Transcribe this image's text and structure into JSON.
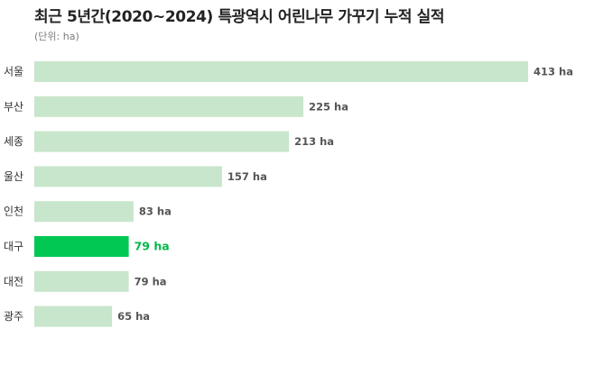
{
  "chart_data": {
    "type": "bar",
    "orientation": "horizontal",
    "title": "최근 5년간(2020~2024) 특광역시 어린나무 가꾸기 누적 실적",
    "subtitle": "(단위: ha)",
    "unit": "ha",
    "categories": [
      "서울",
      "부산",
      "세종",
      "울산",
      "인천",
      "대구",
      "대전",
      "광주"
    ],
    "values": [
      413,
      225,
      213,
      157,
      83,
      79,
      79,
      65
    ],
    "highlight_category": "대구",
    "xlim": [
      0,
      413
    ],
    "grid": false,
    "legend": "none"
  },
  "colors": {
    "bar": "#c8e6cb",
    "highlight": "#00c853",
    "highlight_text": "#00b84a",
    "label": "#555555"
  }
}
